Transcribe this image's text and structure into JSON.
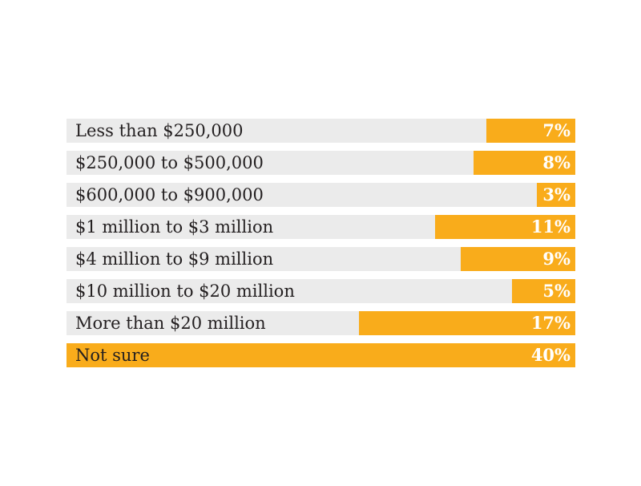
{
  "chart_data": {
    "type": "bar",
    "orientation": "horizontal",
    "title": "",
    "xlabel": "",
    "ylabel": "",
    "xlim": [
      0,
      40
    ],
    "categories": [
      "Less than $250,000",
      "$250,000 to $500,000",
      "$600,000 to $900,000",
      "$1 million to $3 million",
      "$4 million to $9 million",
      "$10 million to $20 million",
      "More than $20 million",
      "Not sure"
    ],
    "values": [
      7,
      8,
      3,
      11,
      9,
      5,
      17,
      40
    ],
    "value_labels": [
      "7%",
      "8%",
      "3%",
      "11%",
      "9%",
      "5%",
      "17%",
      "40%"
    ],
    "colors": {
      "bar": "#f9ac1b",
      "track": "#ebebeb",
      "label_text": "#231f20",
      "value_text": "#ffffff"
    }
  }
}
